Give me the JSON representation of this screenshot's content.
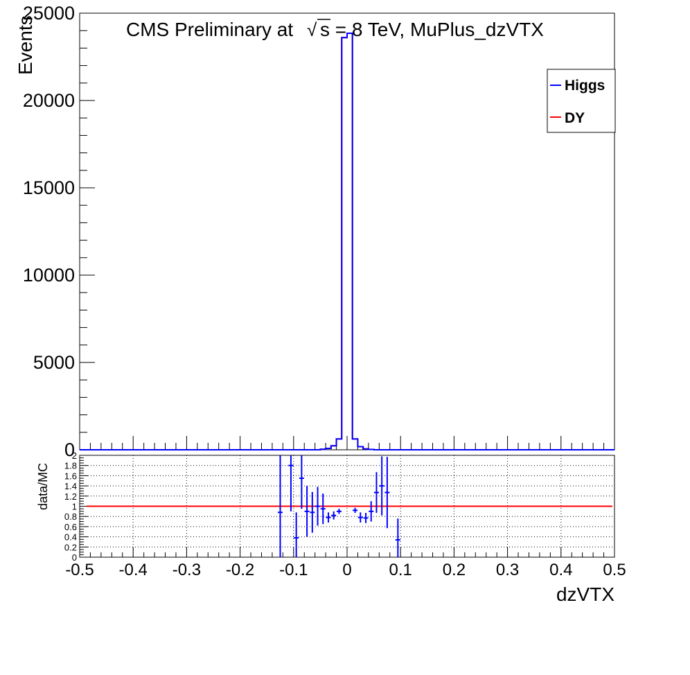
{
  "chart_data": [
    {
      "type": "line",
      "title": "CMS Preliminary at",
      "title_sqrt_symbol": "√",
      "title_energy": "s = 8 TeV, MuPlus_dzVTX",
      "ylabel": "Events",
      "xlim": [
        -0.5,
        0.5
      ],
      "ylim": [
        0,
        25000
      ],
      "y_ticks": [
        "0",
        "5000",
        "10000",
        "15000",
        "20000",
        "25000"
      ],
      "y_tick_values": [
        0,
        5000,
        10000,
        15000,
        20000,
        25000
      ],
      "legend": {
        "placement": "top-right",
        "entries": [
          {
            "label": "Higgs",
            "color": "#0000ff"
          },
          {
            "label": "DY",
            "color": "#ff0000"
          }
        ]
      },
      "series": [
        {
          "name": "Higgs",
          "color": "#0000ff",
          "x": [
            -0.05,
            -0.04,
            -0.03,
            -0.02,
            -0.01,
            0.0,
            0.01,
            0.02,
            0.03,
            0.04
          ],
          "values": [
            30,
            80,
            230,
            620,
            23600,
            23850,
            620,
            180,
            50,
            20
          ]
        },
        {
          "name": "DY",
          "color": "#ff0000",
          "x": [
            -0.05,
            -0.04,
            -0.03,
            -0.02,
            -0.01,
            0.0,
            0.01,
            0.02,
            0.03,
            0.04
          ],
          "values": [
            30,
            80,
            230,
            620,
            23600,
            23850,
            620,
            180,
            50,
            20
          ]
        }
      ]
    },
    {
      "type": "scatter",
      "ylabel": "data/MC",
      "xlabel": "dzVTX",
      "xlim": [
        -0.5,
        0.5
      ],
      "ylim": [
        0,
        2
      ],
      "grid": true,
      "x_ticks": [
        "-0.5",
        "-0.4",
        "-0.3",
        "-0.2",
        "-0.1",
        "0",
        "0.1",
        "0.2",
        "0.3",
        "0.4",
        "0.5"
      ],
      "x_tick_values": [
        -0.5,
        -0.4,
        -0.3,
        -0.2,
        -0.1,
        0,
        0.1,
        0.2,
        0.3,
        0.4,
        0.5
      ],
      "y_ticks": [
        "0",
        "0.2",
        "0.4",
        "0.6",
        "0.8",
        "1",
        "1.2",
        "1.4",
        "1.6",
        "1.8",
        "2"
      ],
      "y_tick_values": [
        0,
        0.2,
        0.4,
        0.6,
        0.8,
        1.0,
        1.2,
        1.4,
        1.6,
        1.8,
        2.0
      ],
      "reference_line": {
        "y": 1.0,
        "color": "#ff0000"
      },
      "points": {
        "color": "#0000ff",
        "x": [
          -0.125,
          -0.105,
          -0.095,
          -0.085,
          -0.075,
          -0.065,
          -0.055,
          -0.045,
          -0.035,
          -0.025,
          -0.015,
          0.015,
          0.025,
          0.035,
          0.045,
          0.055,
          0.065,
          0.075,
          0.095
        ],
        "y": [
          0.88,
          1.8,
          0.38,
          1.55,
          0.9,
          0.88,
          1.0,
          0.95,
          0.78,
          0.82,
          0.9,
          0.92,
          0.78,
          0.77,
          0.9,
          1.27,
          1.4,
          1.27,
          0.34
        ],
        "err": [
          1.3,
          0.9,
          0.5,
          0.6,
          0.5,
          0.4,
          0.38,
          0.3,
          0.1,
          0.08,
          0.05,
          0.05,
          0.1,
          0.1,
          0.2,
          0.4,
          0.58,
          0.7,
          0.42
        ]
      }
    }
  ]
}
